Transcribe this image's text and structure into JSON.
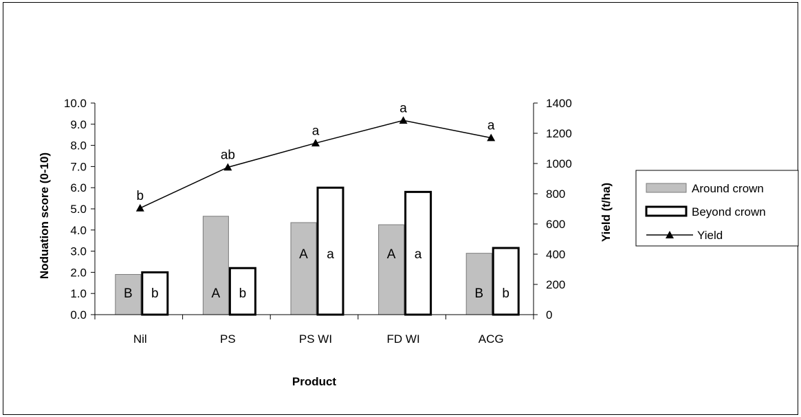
{
  "chart_data": {
    "type": "bar",
    "title": "",
    "xlabel": "Product",
    "ylabel": "Noduation score (0-10)",
    "y2label": "Yield (t/ha)",
    "categories": [
      "Nil",
      "PS",
      "PS WI",
      "FD WI",
      "ACG"
    ],
    "ylim": [
      0,
      10
    ],
    "y2lim": [
      0,
      1400
    ],
    "yticks": [
      "0.0",
      "1.0",
      "2.0",
      "3.0",
      "4.0",
      "5.0",
      "6.0",
      "7.0",
      "8.0",
      "9.0",
      "10.0"
    ],
    "y2ticks": [
      "0",
      "200",
      "400",
      "600",
      "800",
      "1000",
      "1200",
      "1400"
    ],
    "series": [
      {
        "name": "Around crown",
        "type": "bar",
        "color": "#c0c0c0",
        "values": [
          1.9,
          4.65,
          4.35,
          4.25,
          2.9
        ],
        "labels": [
          "B",
          "A",
          "A",
          "A",
          "B"
        ]
      },
      {
        "name": "Beyond crown",
        "type": "bar",
        "color": "#ffffff",
        "values": [
          2.0,
          2.2,
          6.0,
          5.8,
          3.15
        ],
        "labels": [
          "b",
          "b",
          "a",
          "a",
          "b"
        ]
      },
      {
        "name": "Yield",
        "type": "line",
        "axis": "right",
        "color": "#000000",
        "values": [
          705,
          975,
          1135,
          1285,
          1170
        ],
        "labels": [
          "b",
          "ab",
          "a",
          "a",
          "a"
        ]
      }
    ],
    "grid": false,
    "legend_position": "right"
  }
}
